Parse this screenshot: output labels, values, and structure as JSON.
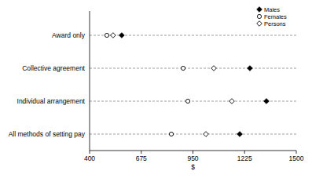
{
  "chart_data": {
    "type": "dot",
    "orientation": "horizontal",
    "categories": [
      "Award only",
      "Collective agreement",
      "Individual arrangement",
      "All methods of setting pay"
    ],
    "series": [
      {
        "name": "Males",
        "color": "#000000",
        "marker": "diamond",
        "values": [
          571,
          1253,
          1341,
          1199
        ]
      },
      {
        "name": "Females",
        "color": "#000000",
        "marker": "circle-open",
        "values": [
          492,
          898,
          923,
          835
        ]
      },
      {
        "name": "Persons",
        "color": "#000000",
        "marker": "diamond-open",
        "values": [
          525,
          1061,
          1157,
          1019
        ]
      }
    ],
    "x_label": "$",
    "xlim": [
      400,
      1500
    ],
    "xticks": [
      400,
      675,
      950,
      1225,
      1500
    ],
    "grid": true,
    "legend": "top-right"
  }
}
